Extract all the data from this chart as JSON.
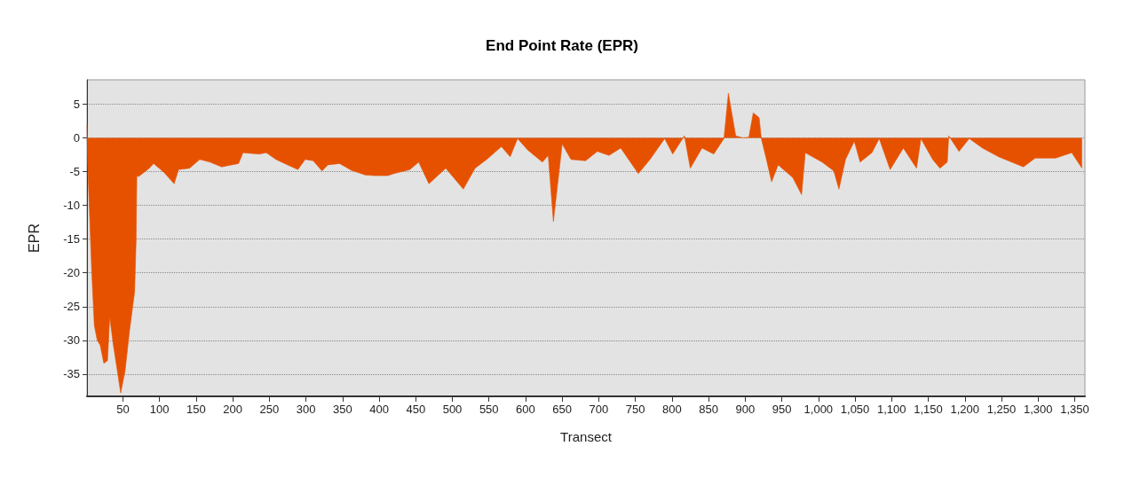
{
  "chart_data": {
    "type": "area",
    "title": "End Point Rate (EPR)",
    "xlabel": "Transect",
    "ylabel": "EPR",
    "x": [
      1,
      2,
      7.5,
      11,
      15,
      19,
      24,
      29,
      32,
      37,
      43,
      47,
      53,
      59,
      66,
      68,
      69,
      72,
      86,
      92,
      106,
      120,
      126,
      141,
      155,
      169,
      185,
      208,
      214,
      236,
      246,
      259,
      271,
      289,
      299,
      310,
      322,
      330,
      346,
      362,
      381,
      394,
      412,
      420,
      442,
      454,
      468,
      491,
      515,
      531,
      547,
      567,
      579,
      589,
      603,
      623,
      631,
      638,
      650,
      662,
      682,
      698,
      714,
      730,
      754,
      770,
      790,
      801,
      817,
      825,
      841,
      857,
      871,
      877,
      887,
      897,
      905,
      911,
      919,
      922,
      929,
      936,
      945,
      965,
      977,
      982,
      1005,
      1021,
      1028,
      1037,
      1049,
      1057,
      1073,
      1083,
      1098,
      1116,
      1134,
      1140,
      1156,
      1166,
      1176,
      1178,
      1192,
      1206,
      1224,
      1246,
      1280,
      1296,
      1324,
      1346,
      1360
    ],
    "series": [
      {
        "color": "#e65100",
        "values": [
          2,
          -4,
          -19.9,
          -27.8,
          -30,
          -30.7,
          -33.4,
          -33,
          -26.5,
          -30.7,
          -34.9,
          -37.8,
          -34.5,
          -28.6,
          -22.8,
          -15.3,
          -5.7,
          -5.7,
          -4.5,
          -3.8,
          -5.1,
          -6.8,
          -4.7,
          -4.5,
          -3.2,
          -3.6,
          -4.3,
          -3.8,
          -2.2,
          -2.4,
          -2.2,
          -3.2,
          -3.8,
          -4.7,
          -3.2,
          -3.4,
          -4.9,
          -4,
          -3.8,
          -4.8,
          -5.5,
          -5.6,
          -5.6,
          -5.3,
          -4.7,
          -3.6,
          -6.8,
          -4.5,
          -7.6,
          -4.5,
          -3.2,
          -1.3,
          -2.8,
          -0.1,
          -1.8,
          -3.6,
          -2.6,
          -12.4,
          -0.9,
          -3.2,
          -3.4,
          -2,
          -2.6,
          -1.5,
          -5.3,
          -3.2,
          -0.1,
          -2.4,
          0.3,
          -4.5,
          -1.5,
          -2.4,
          -0.1,
          6.6,
          0.3,
          0,
          0.1,
          3.7,
          3,
          -0.1,
          -3.2,
          -6.5,
          -4,
          -5.9,
          -8.4,
          -2.2,
          -3.6,
          -4.9,
          -7.6,
          -3.2,
          -0.5,
          -3.6,
          -2.2,
          -0.1,
          -4.7,
          -1.5,
          -4.5,
          -0.1,
          -3.2,
          -4.5,
          -3.6,
          0.3,
          -2,
          -0.1,
          -1.5,
          -2.8,
          -4.3,
          -3,
          -3,
          -2.2,
          -4.5
        ]
      }
    ],
    "xlim": [
      1,
      1364
    ],
    "xticks": [
      50,
      100,
      150,
      200,
      250,
      300,
      350,
      400,
      450,
      500,
      550,
      600,
      650,
      700,
      750,
      800,
      850,
      900,
      950,
      {
        "value": 1000,
        "label": "1,000"
      },
      {
        "value": 1050,
        "label": "1,050"
      },
      {
        "value": 1100,
        "label": "1,100"
      },
      {
        "value": 1150,
        "label": "1,150"
      },
      {
        "value": 1200,
        "label": "1,200"
      },
      {
        "value": 1250,
        "label": "1,250"
      },
      {
        "value": 1300,
        "label": "1,300"
      },
      {
        "value": 1350,
        "label": "1,350"
      }
    ],
    "ylim": [
      -38.3,
      8.6
    ],
    "yticks": [
      -35,
      -30,
      -25,
      -20,
      -15,
      -10,
      -5,
      0,
      5
    ],
    "grid": "y"
  }
}
